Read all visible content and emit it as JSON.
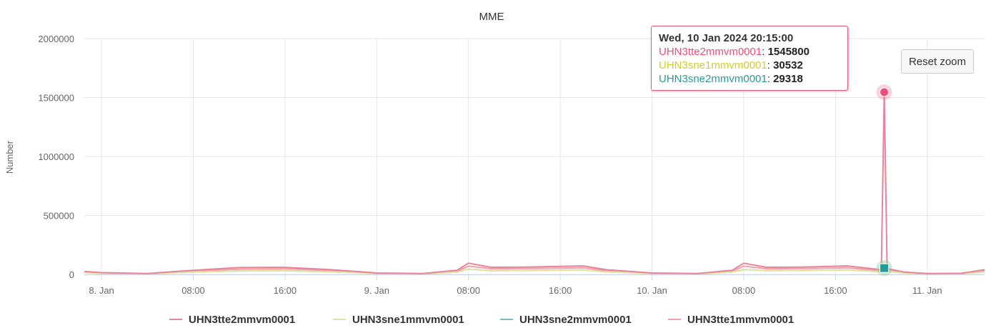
{
  "chart_data": {
    "type": "line",
    "title": "MME",
    "ylabel": "Number",
    "xlabel": "",
    "ylim": [
      0,
      2000000
    ],
    "yticks": [
      0,
      500000,
      1000000,
      1500000,
      2000000
    ],
    "xlim": [
      "2024-01-07 22:30",
      "2024-01-11 05:00"
    ],
    "xticks": [
      {
        "t": "2024-01-08 00:00",
        "label": "8. Jan"
      },
      {
        "t": "2024-01-08 08:00",
        "label": "08:00"
      },
      {
        "t": "2024-01-08 16:00",
        "label": "16:00"
      },
      {
        "t": "2024-01-09 00:00",
        "label": "9. Jan"
      },
      {
        "t": "2024-01-09 08:00",
        "label": "08:00"
      },
      {
        "t": "2024-01-09 16:00",
        "label": "16:00"
      },
      {
        "t": "2024-01-10 00:00",
        "label": "10. Jan"
      },
      {
        "t": "2024-01-10 08:00",
        "label": "08:00"
      },
      {
        "t": "2024-01-10 16:00",
        "label": "16:00"
      },
      {
        "t": "2024-01-11 00:00",
        "label": "11. Jan"
      }
    ],
    "grid": true,
    "legend_position": "bottom",
    "x": [
      "2024-01-07 22:30",
      "2024-01-08 00:00",
      "2024-01-08 04:00",
      "2024-01-08 08:00",
      "2024-01-08 12:00",
      "2024-01-08 16:00",
      "2024-01-08 20:00",
      "2024-01-09 00:00",
      "2024-01-09 04:00",
      "2024-01-09 07:00",
      "2024-01-09 08:00",
      "2024-01-09 10:00",
      "2024-01-09 13:00",
      "2024-01-09 18:00",
      "2024-01-09 20:00",
      "2024-01-10 00:00",
      "2024-01-10 04:00",
      "2024-01-10 07:00",
      "2024-01-10 08:00",
      "2024-01-10 10:00",
      "2024-01-10 13:00",
      "2024-01-10 17:00",
      "2024-01-10 20:00",
      "2024-01-10 20:15",
      "2024-01-10 20:30",
      "2024-01-10 22:00",
      "2024-01-11 00:00",
      "2024-01-11 03:00",
      "2024-01-11 05:00"
    ],
    "series": [
      {
        "name": "UHN3tte2mmvm0001",
        "color": "#e8839c",
        "values": [
          25000,
          15000,
          8000,
          35000,
          58000,
          60000,
          40000,
          12000,
          8000,
          35000,
          95000,
          60000,
          62000,
          72000,
          40000,
          12000,
          8000,
          35000,
          95000,
          60000,
          62000,
          72000,
          40000,
          1545800,
          50000,
          20000,
          8000,
          10000,
          40000
        ]
      },
      {
        "name": "UHN3sne1mmvm0001",
        "color": "#e4e3a4",
        "values": [
          15000,
          9000,
          5000,
          20000,
          30000,
          32000,
          22000,
          8000,
          5000,
          20000,
          45000,
          32000,
          34000,
          38000,
          22000,
          8000,
          5000,
          20000,
          42000,
          32000,
          34000,
          38000,
          22000,
          30532,
          25000,
          12000,
          5000,
          6000,
          20000
        ]
      },
      {
        "name": "UHN3sne2mmvm0001",
        "color": "#7bb9c4",
        "values": [
          15000,
          9000,
          5000,
          20000,
          30000,
          32000,
          22000,
          8000,
          5000,
          20000,
          45000,
          32000,
          34000,
          38000,
          22000,
          8000,
          5000,
          20000,
          42000,
          32000,
          34000,
          38000,
          22000,
          29318,
          25000,
          12000,
          5000,
          6000,
          20000
        ]
      },
      {
        "name": "UHN3tte1mmvm0001",
        "color": "#f2a0a8",
        "values": [
          20000,
          12000,
          6000,
          28000,
          45000,
          48000,
          32000,
          10000,
          6000,
          28000,
          70000,
          48000,
          50000,
          56000,
          32000,
          10000,
          6000,
          28000,
          70000,
          48000,
          50000,
          56000,
          32000,
          45000,
          40000,
          16000,
          6000,
          8000,
          30000
        ]
      }
    ],
    "tooltip": {
      "header": "Wed, 10 Jan 2024 20:15:00",
      "rows": [
        {
          "name": "UHN3tte2mmvm0001",
          "value": "1545800",
          "color": "#e8517a"
        },
        {
          "name": "UHN3sne1mmvm0001",
          "value": "30532",
          "color": "#d4cc2a"
        },
        {
          "name": "UHN3sne2mmvm0001",
          "value": "29318",
          "color": "#2a9a96"
        }
      ]
    },
    "hover_x": "2024-01-10 20:15",
    "hover_markers": [
      {
        "series": "UHN3tte2mmvm0001",
        "value": 1545800,
        "color": "#e8517a",
        "shape": "circle"
      },
      {
        "series": "UHN3sne2mmvm0001",
        "value": 29318,
        "color": "#2a9a96",
        "shape": "square"
      }
    ]
  },
  "reset_zoom_label": "Reset zoom"
}
